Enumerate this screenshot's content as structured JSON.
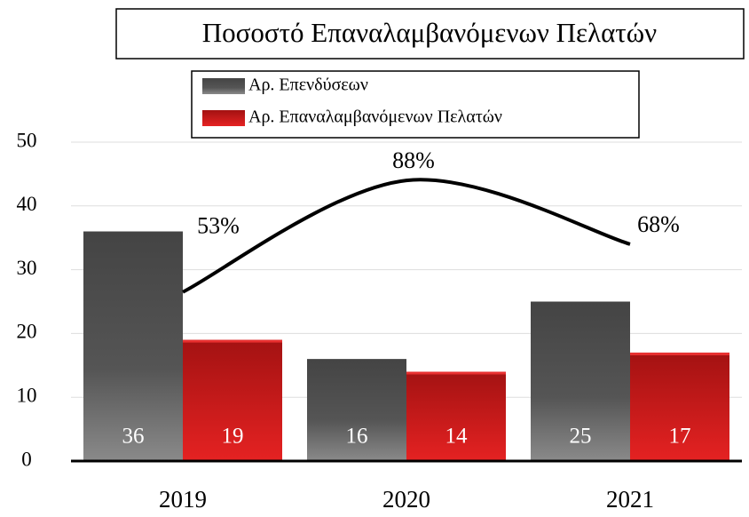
{
  "chart_data": {
    "type": "bar",
    "title": "Ποσοστό Επαναλαμβανόμενων Πελατών",
    "categories": [
      "2019",
      "2020",
      "2021"
    ],
    "series": [
      {
        "name": "Αρ. Επενδύσεων",
        "color": "#4a4a4a",
        "values": [
          36,
          16,
          25
        ]
      },
      {
        "name": "Αρ. Επαναλαμβανόμενων Πελατών",
        "color": "#c41414",
        "values": [
          19,
          14,
          17
        ]
      }
    ],
    "line": {
      "type": "line",
      "axis": "y2",
      "color": "#000000",
      "values": [
        53,
        88,
        68
      ],
      "value_labels": [
        "53%",
        "88%",
        "68%"
      ]
    },
    "ylim": [
      0,
      50
    ],
    "yticks": [
      0,
      10,
      20,
      30,
      40,
      50
    ],
    "y2lim": [
      0,
      100
    ],
    "grid": true,
    "legend": "top"
  }
}
